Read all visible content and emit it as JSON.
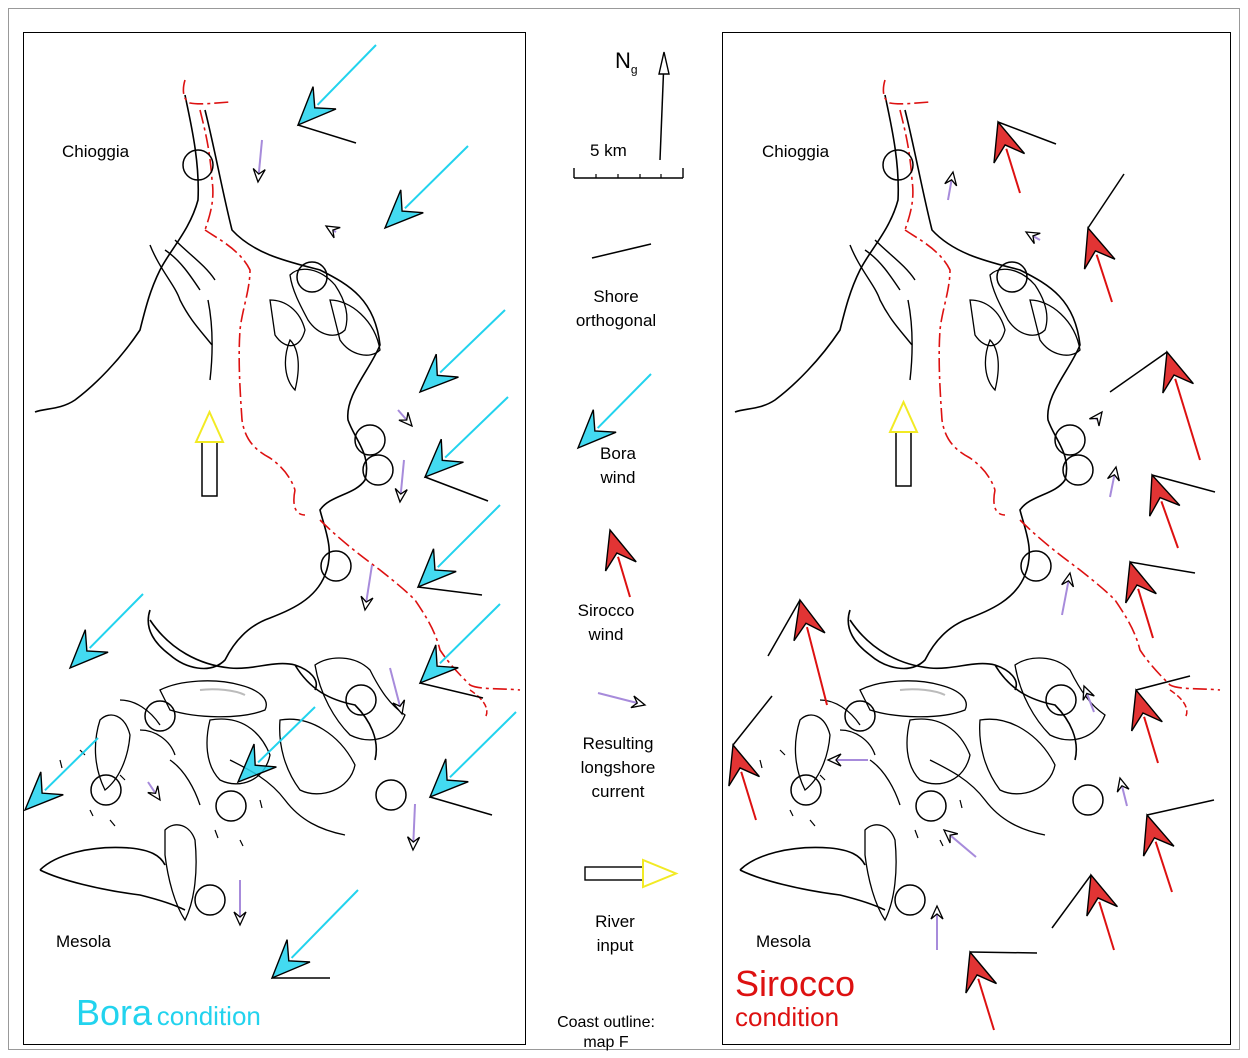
{
  "colors": {
    "bora": "#22d3ee",
    "sirocco": "#dd1111",
    "current": "#a78bdb",
    "river": "#f2ea24",
    "coast": "#000000",
    "channel": "#dd1111"
  },
  "icons": [
    "north-arrow-icon",
    "wind-arrow-icon",
    "current-arrow-icon",
    "river-input-icon",
    "scale-bar-icon"
  ],
  "places": {
    "left_north": "Chioggia",
    "left_south": "Mesola",
    "right_north": "Chioggia",
    "right_south": "Mesola"
  },
  "north_arrow": {
    "letter": "N",
    "subscript": "g"
  },
  "scale_bar": {
    "label": "5 km"
  },
  "legend": {
    "shore": [
      "Shore",
      "orthogonal"
    ],
    "bora": [
      "Bora",
      "wind"
    ],
    "sirocco": [
      "Sirocco",
      "wind"
    ],
    "current": [
      "Resulting",
      "longshore",
      "current"
    ],
    "river": [
      "River",
      "input"
    ],
    "coast": [
      "Coast outline:",
      "map F"
    ]
  },
  "panel_titles": {
    "bora_big": "Bora",
    "bora_small": "condition",
    "sirocco_big": "Sirocco",
    "sirocco_small": "condition"
  }
}
